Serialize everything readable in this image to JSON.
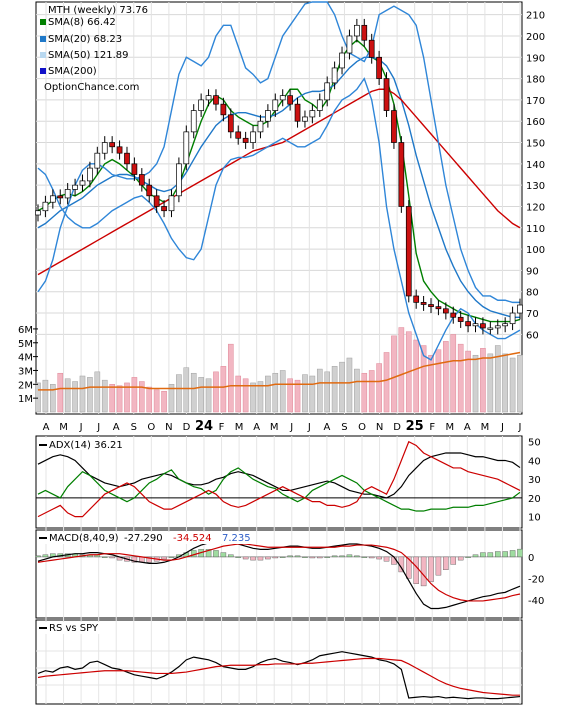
{
  "chart_data": [
    {
      "type": "line",
      "panel": "price",
      "title": "MTH (weekly) 73.76",
      "legend_placement": "top-left",
      "watermark": "OptionChance.com",
      "grid": true,
      "x_tick_labels": [
        "A",
        "M",
        "J",
        "J",
        "A",
        "S",
        "O",
        "N",
        "D",
        "24",
        "F",
        "M",
        "A",
        "M",
        "J",
        "J",
        "A",
        "S",
        "O",
        "N",
        "D",
        "25",
        "F",
        "M",
        "A",
        "M",
        "J",
        "J"
      ],
      "y_ticks": [
        60,
        70,
        80,
        90,
        100,
        110,
        120,
        130,
        140,
        150,
        160,
        170,
        180,
        190,
        200,
        210
      ],
      "ylim": [
        55,
        215
      ],
      "series": [
        {
          "name": "SMA(8) 66.42",
          "color": "#007f00",
          "values": [
            118,
            120,
            123,
            125,
            126,
            125,
            127,
            130,
            135,
            140,
            142,
            140,
            137,
            134,
            130,
            126,
            124,
            122,
            124,
            130,
            140,
            150,
            160,
            168,
            172,
            170,
            165,
            162,
            160,
            158,
            158,
            160,
            165,
            170,
            175,
            175,
            170,
            168,
            165,
            170,
            180,
            190,
            195,
            198,
            195,
            190,
            188,
            180,
            168,
            150,
            125,
            98,
            85,
            80,
            76,
            74,
            72,
            70,
            69,
            68,
            67,
            66,
            66,
            66,
            66,
            67
          ]
        },
        {
          "name": "SMA(20) 68.23",
          "color": "#1f78c8",
          "values": [
            110,
            112,
            115,
            118,
            120,
            122,
            124,
            127,
            130,
            132,
            134,
            135,
            135,
            134,
            132,
            130,
            128,
            127,
            128,
            131,
            136,
            142,
            148,
            153,
            158,
            161,
            163,
            164,
            164,
            163,
            162,
            162,
            163,
            165,
            168,
            171,
            173,
            174,
            174,
            175,
            177,
            181,
            185,
            188,
            190,
            190,
            189,
            186,
            180,
            170,
            158,
            144,
            132,
            120,
            110,
            100,
            92,
            85,
            80,
            76,
            73,
            71,
            70,
            69,
            68,
            68
          ]
        },
        {
          "name": "SMA(50) 121.89",
          "color": "#b8d8f0",
          "values": []
        },
        {
          "name": "SMA(200)",
          "color": "#1010c8",
          "values": []
        },
        {
          "name": "Trend (red)",
          "color": "#cc0000",
          "values": [
            88,
            90,
            92,
            94,
            96,
            98,
            100,
            102,
            104,
            106,
            108,
            110,
            112,
            114,
            116,
            118,
            120,
            122,
            124,
            126,
            128,
            130,
            132,
            134,
            136,
            138,
            140,
            142,
            144,
            146,
            147,
            148,
            149,
            150,
            152,
            154,
            156,
            158,
            160,
            162,
            164,
            166,
            168,
            170,
            172,
            174,
            175,
            175,
            173,
            170,
            166,
            162,
            158,
            154,
            150,
            146,
            142,
            138,
            134,
            130,
            126,
            122,
            118,
            115,
            112,
            110
          ]
        },
        {
          "name": "Upper band",
          "color": "#2f86d8",
          "values": [
            80,
            85,
            95,
            110,
            120,
            130,
            137,
            140,
            140,
            138,
            135,
            134,
            133,
            133,
            134,
            136,
            140,
            148,
            165,
            182,
            190,
            188,
            186,
            190,
            200,
            205,
            205,
            195,
            185,
            182,
            178,
            180,
            190,
            200,
            205,
            210,
            215,
            218,
            220,
            218,
            210,
            200,
            192,
            190,
            188,
            195,
            210,
            212,
            214,
            212,
            210,
            205,
            190,
            170,
            150,
            130,
            115,
            100,
            90,
            82,
            78,
            78,
            76,
            76,
            75,
            75
          ]
        },
        {
          "name": "Lower band",
          "color": "#2f86d8",
          "values": [
            138,
            135,
            128,
            120,
            115,
            112,
            110,
            110,
            112,
            115,
            118,
            120,
            122,
            124,
            125,
            122,
            118,
            112,
            105,
            100,
            96,
            95,
            100,
            115,
            130,
            138,
            142,
            143,
            143,
            144,
            146,
            148,
            150,
            152,
            150,
            148,
            148,
            150,
            152,
            158,
            165,
            170,
            172,
            175,
            180,
            170,
            150,
            120,
            100,
            85,
            70,
            60,
            50,
            48,
            55,
            62,
            68,
            72,
            70,
            65,
            62,
            60,
            58,
            58,
            60,
            62
          ]
        }
      ],
      "close": [
        118,
        122,
        125,
        124,
        128,
        130,
        132,
        138,
        145,
        150,
        148,
        145,
        140,
        135,
        130,
        125,
        120,
        118,
        125,
        140,
        155,
        165,
        170,
        172,
        168,
        163,
        155,
        152,
        150,
        155,
        160,
        165,
        170,
        172,
        168,
        160,
        162,
        165,
        170,
        178,
        185,
        192,
        200,
        205,
        198,
        190,
        180,
        165,
        150,
        120,
        78,
        75,
        74,
        73,
        72,
        70,
        68,
        66,
        64,
        65,
        63,
        63,
        64,
        65,
        70,
        73.76
      ]
    },
    {
      "type": "bar",
      "panel": "volume",
      "y_tick_labels": [
        "1M",
        "2M",
        "3M",
        "4M",
        "5M",
        "6M"
      ],
      "ylim": [
        0,
        6500000
      ],
      "values": [
        2.1,
        2.3,
        2.0,
        2.8,
        2.4,
        2.2,
        2.6,
        2.5,
        2.9,
        2.3,
        2.0,
        1.9,
        2.1,
        2.5,
        2.2,
        1.8,
        1.6,
        1.5,
        2.0,
        2.7,
        3.2,
        2.8,
        2.5,
        2.4,
        2.9,
        3.3,
        4.9,
        2.6,
        2.4,
        2.1,
        2.2,
        2.6,
        2.8,
        3.0,
        2.4,
        2.3,
        2.7,
        2.6,
        3.1,
        2.9,
        3.3,
        3.6,
        3.9,
        3.1,
        2.8,
        3.0,
        3.5,
        4.3,
        5.5,
        6.1,
        5.8,
        5.2,
        4.8,
        4.1,
        4.5,
        5.1,
        5.6,
        4.9,
        4.4,
        4.1,
        4.6,
        4.2,
        4.8,
        4.2,
        3.9,
        4.1
      ],
      "avg": [
        1.6,
        1.6,
        1.6,
        1.7,
        1.7,
        1.7,
        1.7,
        1.8,
        1.8,
        1.8,
        1.8,
        1.8,
        1.8,
        1.8,
        1.8,
        1.7,
        1.7,
        1.7,
        1.7,
        1.7,
        1.7,
        1.7,
        1.8,
        1.8,
        1.8,
        1.8,
        1.9,
        1.9,
        1.9,
        1.9,
        1.9,
        1.9,
        2.0,
        2.0,
        2.0,
        2.0,
        2.0,
        2.0,
        2.1,
        2.1,
        2.1,
        2.1,
        2.1,
        2.2,
        2.2,
        2.2,
        2.2,
        2.3,
        2.5,
        2.7,
        2.9,
        3.1,
        3.3,
        3.4,
        3.5,
        3.6,
        3.7,
        3.7,
        3.8,
        3.8,
        3.9,
        3.9,
        4.0,
        4.1,
        4.2,
        4.3
      ]
    },
    {
      "type": "line",
      "panel": "adx",
      "title": "ADX(14) 36.21",
      "y_ticks": [
        10,
        20,
        30,
        40,
        50
      ],
      "ylim": [
        5,
        52
      ],
      "series": [
        {
          "name": "ADX",
          "color": "#000000",
          "values": [
            38,
            40,
            42,
            43,
            42,
            40,
            36,
            32,
            30,
            28,
            27,
            26,
            27,
            28,
            30,
            31,
            32,
            33,
            32,
            30,
            28,
            27,
            27,
            28,
            30,
            31,
            33,
            34,
            33,
            32,
            30,
            28,
            26,
            24,
            24,
            25,
            26,
            27,
            28,
            29,
            28,
            26,
            24,
            23,
            22,
            22,
            21,
            20,
            22,
            26,
            32,
            36,
            40,
            42,
            43,
            44,
            44,
            44,
            43,
            42,
            42,
            41,
            40,
            40,
            39,
            36.21
          ]
        },
        {
          "name": "+DI",
          "color": "#007f00",
          "values": [
            22,
            24,
            22,
            20,
            26,
            30,
            34,
            32,
            28,
            24,
            22,
            20,
            18,
            20,
            24,
            28,
            30,
            33,
            35,
            30,
            28,
            26,
            25,
            22,
            24,
            30,
            34,
            36,
            33,
            30,
            28,
            26,
            25,
            22,
            20,
            18,
            20,
            24,
            26,
            28,
            30,
            32,
            30,
            28,
            24,
            22,
            20,
            18,
            16,
            14,
            14,
            13,
            13,
            14,
            14,
            14,
            15,
            15,
            15,
            16,
            16,
            17,
            18,
            19,
            20,
            23
          ]
        },
        {
          "name": "-DI",
          "color": "#cc0000",
          "values": [
            10,
            12,
            14,
            16,
            12,
            10,
            10,
            14,
            18,
            22,
            24,
            26,
            28,
            26,
            22,
            18,
            16,
            14,
            14,
            16,
            18,
            20,
            22,
            24,
            22,
            18,
            16,
            15,
            16,
            18,
            20,
            22,
            24,
            26,
            24,
            22,
            20,
            18,
            18,
            16,
            16,
            15,
            16,
            18,
            24,
            26,
            24,
            22,
            30,
            40,
            50,
            48,
            44,
            42,
            40,
            38,
            36,
            36,
            34,
            33,
            32,
            31,
            30,
            28,
            26,
            24
          ]
        }
      ]
    },
    {
      "type": "line",
      "panel": "macd",
      "title": "MACD(8,40,9)",
      "macd": "-27.290",
      "signal": "-34.524",
      "histogram": "7.235",
      "y_ticks": [
        0,
        -20,
        -40
      ],
      "ylim": [
        -55,
        12
      ],
      "series": [
        {
          "name": "MACD",
          "color": "#000000",
          "values": [
            -4,
            -2,
            0,
            1,
            2,
            3,
            3,
            4,
            4,
            3,
            2,
            0,
            -2,
            -4,
            -5,
            -6,
            -6,
            -5,
            -3,
            0,
            4,
            8,
            11,
            13,
            14,
            14,
            13,
            12,
            10,
            8,
            7,
            7,
            8,
            9,
            10,
            10,
            9,
            8,
            8,
            9,
            10,
            11,
            12,
            12,
            11,
            10,
            8,
            5,
            0,
            -10,
            -22,
            -34,
            -44,
            -48,
            -48,
            -47,
            -45,
            -43,
            -41,
            -39,
            -37,
            -36,
            -34,
            -33,
            -30,
            -27.29
          ]
        },
        {
          "name": "Signal",
          "color": "#cc0000",
          "values": [
            -5,
            -4,
            -3,
            -2,
            -1,
            0,
            1,
            2,
            2,
            3,
            3,
            3,
            2,
            1,
            0,
            -1,
            -2,
            -3,
            -3,
            -2,
            0,
            2,
            4,
            6,
            8,
            10,
            11,
            12,
            12,
            11,
            10,
            9,
            9,
            9,
            9,
            9,
            9,
            9,
            9,
            9,
            9,
            10,
            10,
            11,
            11,
            11,
            10,
            9,
            7,
            4,
            -2,
            -9,
            -17,
            -25,
            -31,
            -35,
            -38,
            -40,
            -41,
            -41,
            -41,
            -40,
            -39,
            -38,
            -36,
            -34.52
          ]
        }
      ]
    },
    {
      "type": "line",
      "panel": "rs",
      "title": "RS vs SPY",
      "grid": true,
      "ylim": [
        0,
        100
      ],
      "series": [
        {
          "name": "RS",
          "color": "#000000",
          "values": [
            42,
            46,
            44,
            50,
            52,
            48,
            50,
            58,
            60,
            55,
            50,
            48,
            44,
            40,
            38,
            36,
            34,
            38,
            44,
            52,
            62,
            66,
            64,
            62,
            58,
            52,
            50,
            48,
            48,
            52,
            58,
            62,
            64,
            60,
            58,
            55,
            58,
            62,
            68,
            70,
            72,
            74,
            72,
            70,
            68,
            66,
            62,
            60,
            56,
            48,
            6,
            7,
            8,
            7,
            8,
            6,
            7,
            6,
            5,
            6,
            6,
            5,
            5,
            6,
            7,
            8
          ]
        },
        {
          "name": "RS avg",
          "color": "#cc0000",
          "values": [
            36,
            38,
            39,
            40,
            41,
            42,
            43,
            44,
            45,
            46,
            46,
            46,
            46,
            45,
            44,
            43,
            42,
            42,
            42,
            43,
            44,
            46,
            48,
            50,
            52,
            53,
            54,
            54,
            54,
            54,
            55,
            55,
            56,
            56,
            56,
            56,
            57,
            57,
            58,
            59,
            60,
            61,
            62,
            63,
            64,
            64,
            64,
            63,
            62,
            61,
            56,
            50,
            44,
            38,
            32,
            27,
            23,
            20,
            18,
            16,
            14,
            13,
            12,
            11,
            10,
            10
          ]
        }
      ]
    }
  ]
}
